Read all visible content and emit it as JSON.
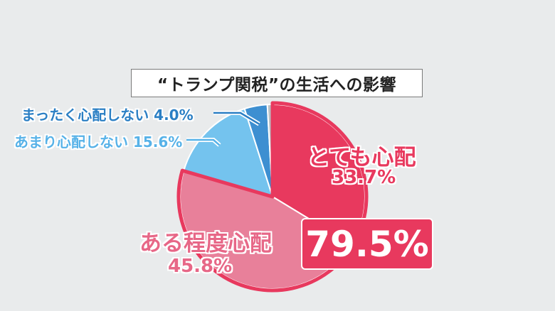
{
  "title": "“トランプ関税”の生活への影響",
  "total_label": "79.5%",
  "labels": {
    "very": {
      "name": "とても心配",
      "value": "33.7%"
    },
    "somewhat": {
      "name": "ある程度心配",
      "value": "45.8%"
    },
    "not_much": "あまり心配しない 15.6%",
    "not_at_all": "まったく心配しない 4.0%"
  },
  "chart_data": {
    "type": "pie",
    "title": "“トランプ関税”の生活への影響",
    "slices": [
      {
        "label": "とても心配",
        "value": 33.7,
        "color": "#e8395e"
      },
      {
        "label": "ある程度心配",
        "value": 45.8,
        "color": "#e8809a"
      },
      {
        "label": "あまり心配しない",
        "value": 15.6,
        "color": "#74c3ee"
      },
      {
        "label": "まったく心配しない",
        "value": 4.0,
        "color": "#3d8fd1"
      },
      {
        "label": "",
        "value": 0.9,
        "color": "#b9bfc4"
      }
    ],
    "highlight": {
      "slices": [
        "とても心配",
        "ある程度心配"
      ],
      "total": 79.5,
      "outline_color": "#e8395e"
    }
  }
}
